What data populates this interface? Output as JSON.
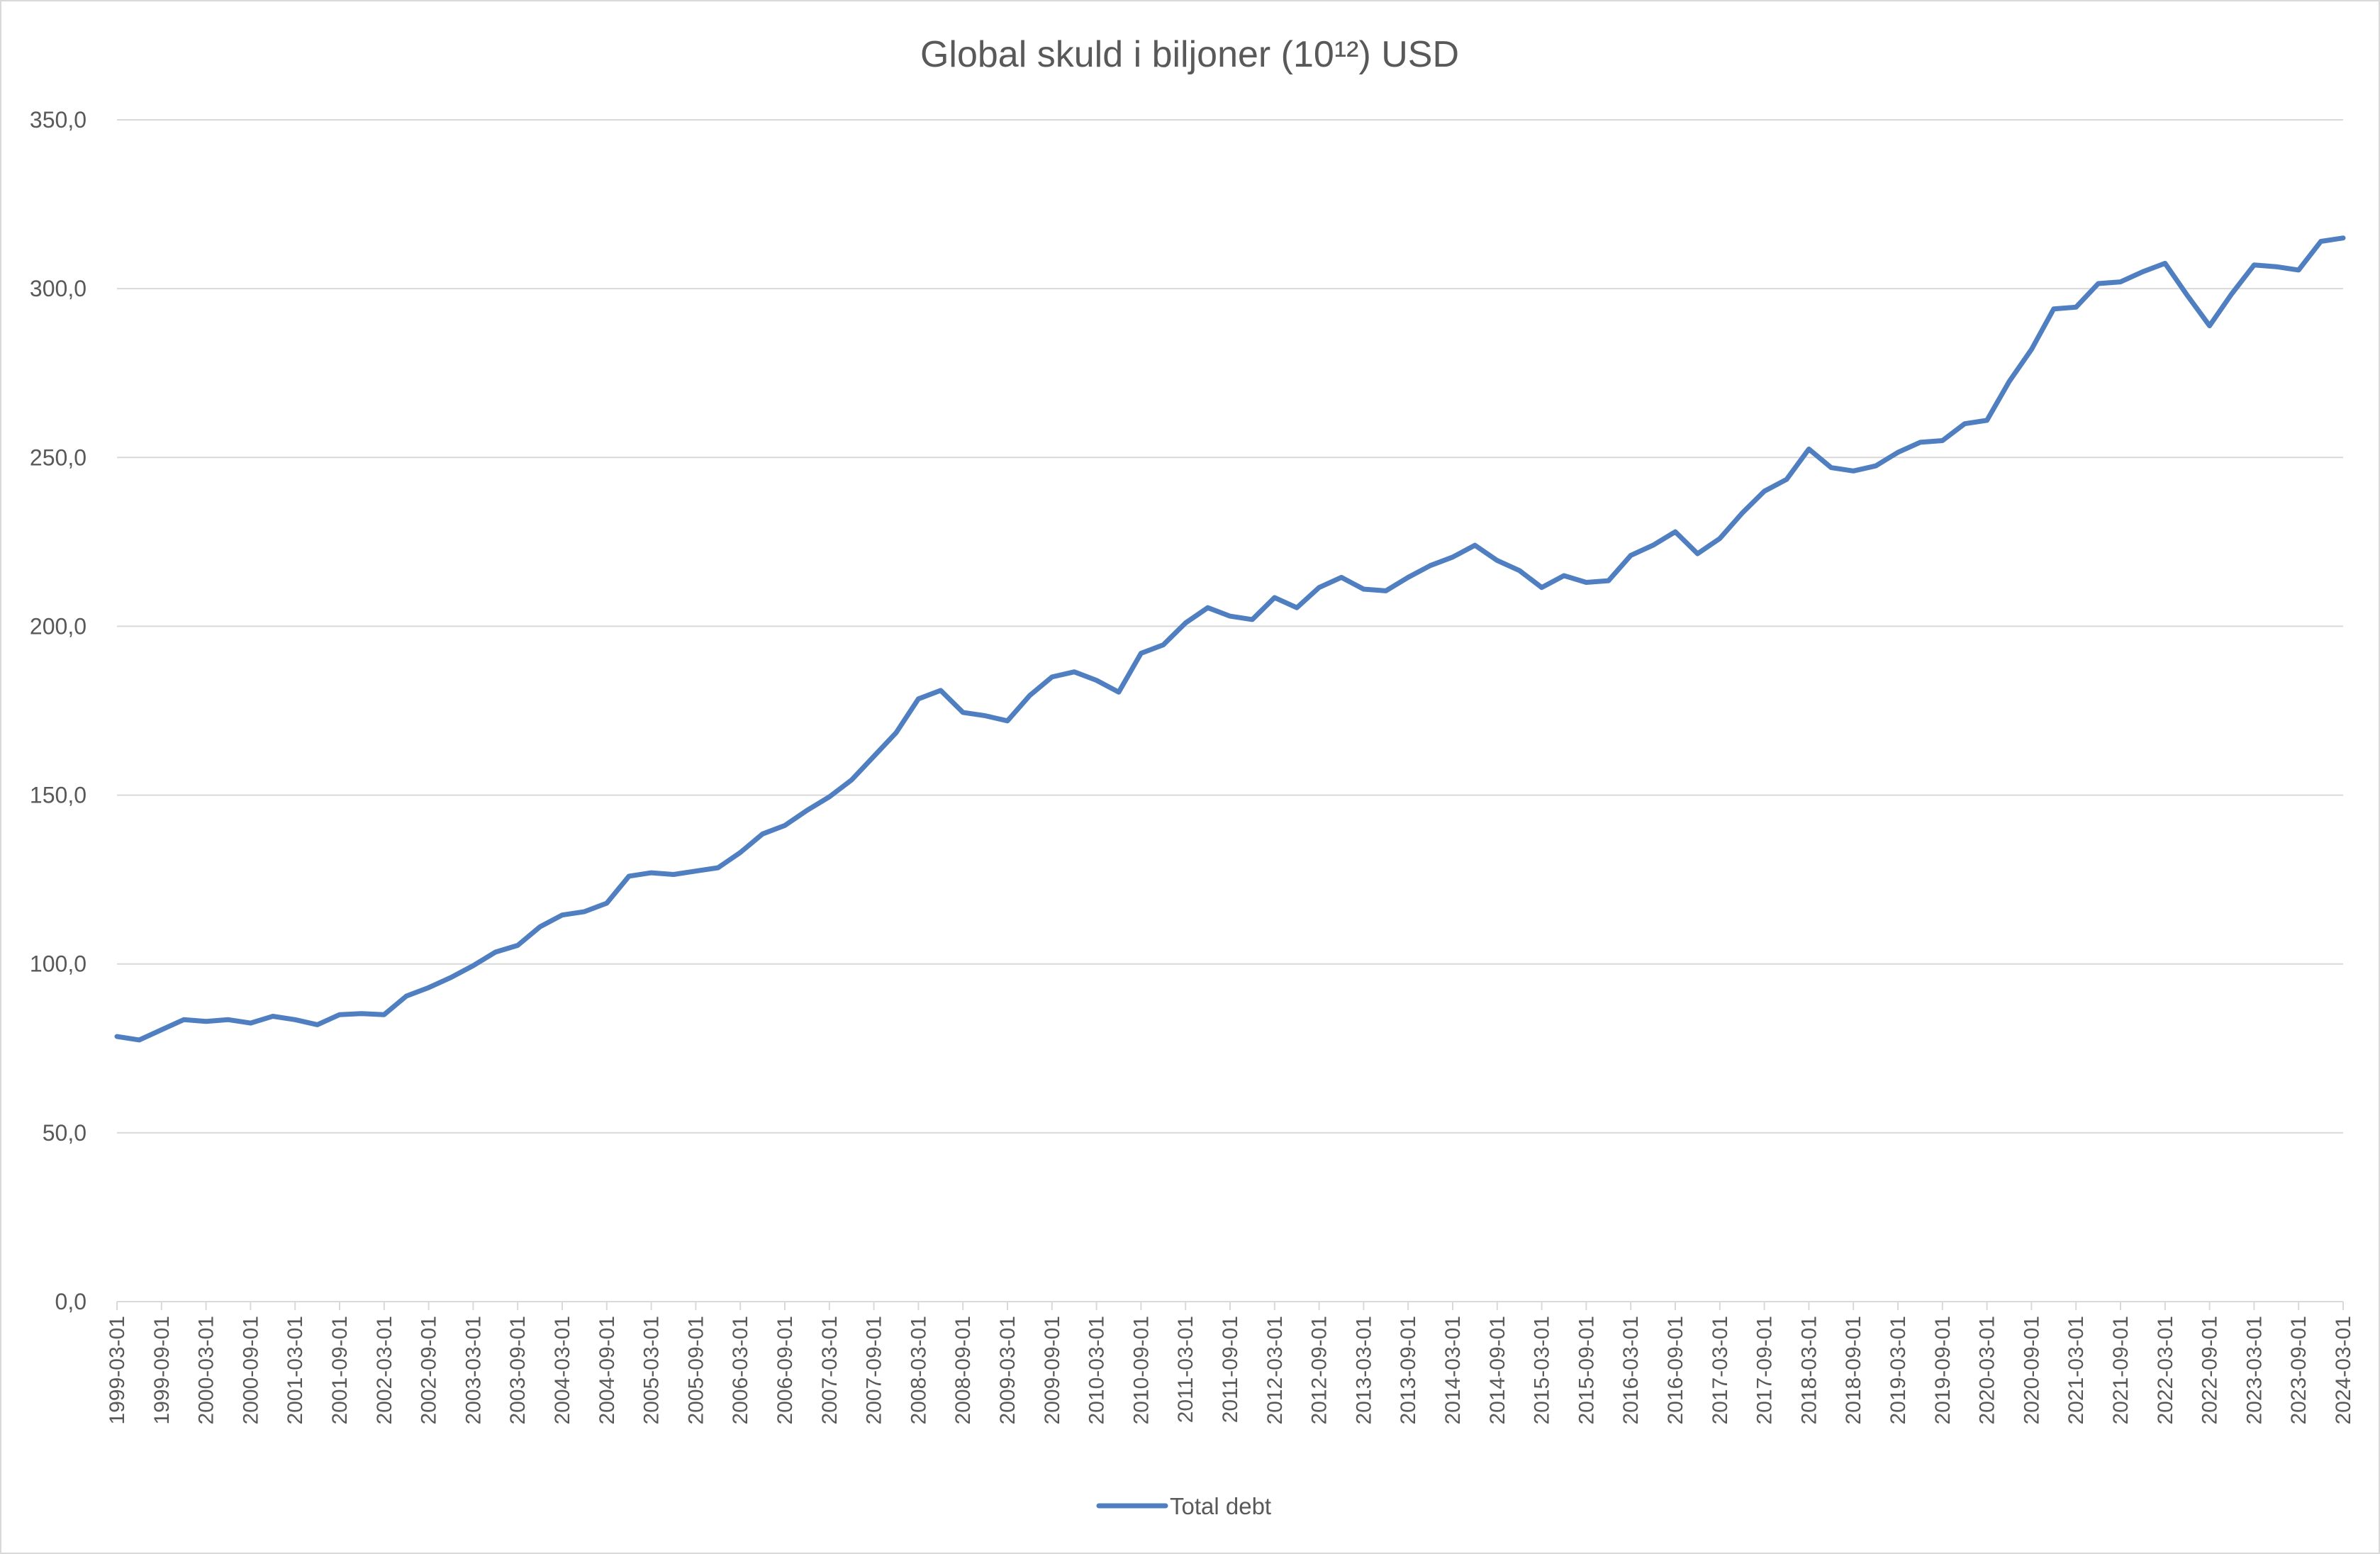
{
  "chart_data": {
    "type": "line",
    "title": "Global skuld i biljoner (10¹²) USD",
    "ylim": [
      0,
      350
    ],
    "y_ticks": [
      "0,0",
      "50,0",
      "100,0",
      "150,0",
      "200,0",
      "250,0",
      "300,0",
      "350,0"
    ],
    "x_ticks": [
      "1999-03-01",
      "1999-09-01",
      "2000-03-01",
      "2000-09-01",
      "2001-03-01",
      "2001-09-01",
      "2002-03-01",
      "2002-09-01",
      "2003-03-01",
      "2003-09-01",
      "2004-03-01",
      "2004-09-01",
      "2005-03-01",
      "2005-09-01",
      "2006-03-01",
      "2006-09-01",
      "2007-03-01",
      "2007-09-01",
      "2008-03-01",
      "2008-09-01",
      "2009-03-01",
      "2009-09-01",
      "2010-03-01",
      "2010-09-01",
      "2011-03-01",
      "2011-09-01",
      "2012-03-01",
      "2012-09-01",
      "2013-03-01",
      "2013-09-01",
      "2014-03-01",
      "2014-09-01",
      "2015-03-01",
      "2015-09-01",
      "2016-03-01",
      "2016-09-01",
      "2017-03-01",
      "2017-09-01",
      "2018-03-01",
      "2018-09-01",
      "2019-03-01",
      "2019-09-01",
      "2020-03-01",
      "2020-09-01",
      "2021-03-01",
      "2021-09-01",
      "2022-03-01",
      "2022-09-01",
      "2023-03-01",
      "2023-09-01",
      "2024-03-01"
    ],
    "grid": true,
    "legend_position": "bottom",
    "series": [
      {
        "name": "Total debt",
        "color": "#4f7fc0",
        "values": [
          78.5,
          77.5,
          80.5,
          83.5,
          83,
          83.5,
          82.5,
          84.5,
          83.5,
          82,
          85,
          85.3,
          85,
          90.5,
          93,
          96,
          99.5,
          103.5,
          105.5,
          111,
          114.5,
          115.5,
          118,
          126,
          127,
          126.5,
          127.5,
          128.5,
          133,
          138.5,
          141,
          145.5,
          149.5,
          154.5,
          161.5,
          168.5,
          178.5,
          181,
          174.5,
          173.5,
          172,
          179.5,
          185,
          186.5,
          184,
          180.5,
          192,
          194.5,
          201,
          205.5,
          203,
          202,
          208.5,
          205.5,
          211.5,
          214.5,
          211,
          210.5,
          214.5,
          218,
          220.5,
          224,
          219.5,
          216.5,
          211.5,
          215,
          213,
          213.5,
          221,
          224,
          228,
          221.5,
          226,
          233.5,
          240,
          243.5,
          252.5,
          247,
          246,
          247.5,
          251.5,
          254.5,
          255,
          260,
          261,
          272.5,
          282,
          294,
          294.5,
          301.5,
          302,
          305,
          307.5,
          298,
          289,
          298.5,
          307,
          306.5,
          305.5,
          314,
          315
        ]
      }
    ]
  }
}
